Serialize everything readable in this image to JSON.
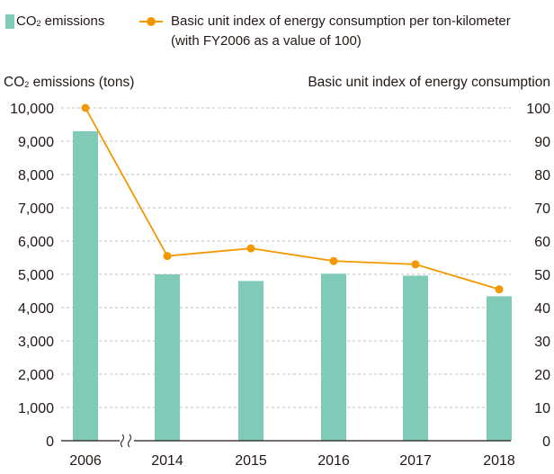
{
  "legend": {
    "bar_prefix": "CO",
    "bar_sub": "2",
    "bar_suffix": " emissions",
    "line_label_1": "Basic unit index of energy consumption per ton-kilometer",
    "line_label_2": "(with FY2006 as a value of 100)"
  },
  "chart_data": {
    "type": "bar",
    "categories": [
      "2006",
      "2014",
      "2015",
      "2016",
      "2017",
      "2018"
    ],
    "series": [
      {
        "name": "CO2 emissions",
        "type": "bar",
        "axis": "left",
        "color": "#7fcbb8",
        "values": [
          9300,
          5000,
          4800,
          5020,
          4960,
          4340
        ]
      },
      {
        "name": "Basic unit index of energy consumption per ton-kilometer (with FY2006 as a value of 100)",
        "type": "line",
        "axis": "right",
        "color": "#f39800",
        "values": [
          100,
          55.5,
          57.8,
          54,
          53,
          45.5
        ]
      }
    ],
    "y_left": {
      "label_prefix": "CO",
      "label_sub": "2",
      "label_suffix": " emissions (tons)",
      "range": [
        0,
        10000
      ],
      "ticks": [
        "0",
        "1,000",
        "2,000",
        "3,000",
        "4,000",
        "5,000",
        "6,000",
        "7,000",
        "8,000",
        "9,000",
        "10,000"
      ]
    },
    "y_right": {
      "label": "Basic unit index of energy consumption",
      "range": [
        0,
        100
      ],
      "ticks": [
        "0",
        "10",
        "20",
        "30",
        "40",
        "50",
        "60",
        "70",
        "80",
        "90",
        "100"
      ]
    },
    "axis_break": "after 2006",
    "grid": "horizontal dashed",
    "colors": {
      "bar": "#7fcbb8",
      "line": "#f39800",
      "grid": "#bfbfbf",
      "axis": "#231815"
    }
  }
}
